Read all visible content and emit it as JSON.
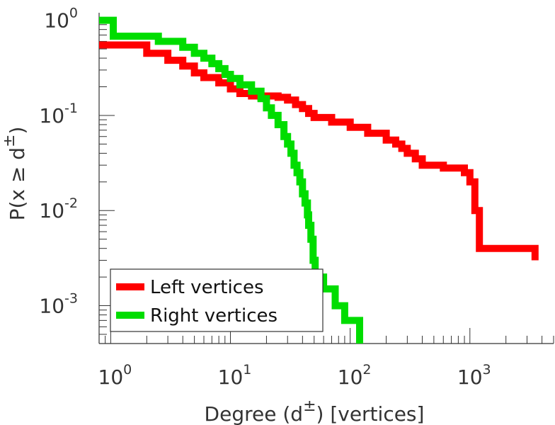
{
  "chart_data": {
    "type": "line",
    "title": "",
    "xlabel": {
      "prefix": "Degree (d",
      "superscript": "±",
      "suffix": ") [vertices]"
    },
    "ylabel": {
      "prefix": "P(x ≥ d",
      "superscript": "±",
      "suffix": ")"
    },
    "x_scale": "log",
    "y_scale": "log",
    "xlim": [
      0.8,
      5000
    ],
    "ylim": [
      0.0004,
      1.2
    ],
    "x_ticks": [
      {
        "value": 1,
        "base": "10",
        "exp": "0"
      },
      {
        "value": 10,
        "base": "10",
        "exp": "1"
      },
      {
        "value": 100,
        "base": "10",
        "exp": "2"
      },
      {
        "value": 1000,
        "base": "10",
        "exp": "3"
      }
    ],
    "y_ticks": [
      {
        "value": 1,
        "base": "10",
        "exp": "0"
      },
      {
        "value": 0.1,
        "base": "10",
        "exp": "-1"
      },
      {
        "value": 0.01,
        "base": "10",
        "exp": "-2"
      },
      {
        "value": 0.001,
        "base": "10",
        "exp": "-3"
      }
    ],
    "grid": false,
    "legend_position": "bottom-left",
    "series": [
      {
        "name": "Left vertices",
        "color": "#ff0000",
        "step": true,
        "points": [
          [
            0.8,
            0.55
          ],
          [
            1,
            0.55
          ],
          [
            2,
            0.45
          ],
          [
            3,
            0.38
          ],
          [
            4,
            0.33
          ],
          [
            5,
            0.28
          ],
          [
            6,
            0.25
          ],
          [
            8,
            0.22
          ],
          [
            10,
            0.19
          ],
          [
            12,
            0.17
          ],
          [
            15,
            0.16
          ],
          [
            18,
            0.155
          ],
          [
            20,
            0.16
          ],
          [
            25,
            0.155
          ],
          [
            30,
            0.145
          ],
          [
            35,
            0.13
          ],
          [
            40,
            0.118
          ],
          [
            45,
            0.105
          ],
          [
            50,
            0.095
          ],
          [
            70,
            0.085
          ],
          [
            100,
            0.075
          ],
          [
            140,
            0.065
          ],
          [
            200,
            0.055
          ],
          [
            240,
            0.05
          ],
          [
            270,
            0.045
          ],
          [
            300,
            0.04
          ],
          [
            350,
            0.035
          ],
          [
            400,
            0.03
          ],
          [
            600,
            0.028
          ],
          [
            900,
            0.025
          ],
          [
            1000,
            0.02
          ],
          [
            1100,
            0.01
          ],
          [
            1200,
            0.004
          ],
          [
            3500,
            0.004
          ],
          [
            3500,
            0.003
          ]
        ]
      },
      {
        "name": "Right vertices",
        "color": "#00dd00",
        "step": true,
        "points": [
          [
            0.8,
            1.0
          ],
          [
            1.05,
            1.0
          ],
          [
            1.05,
            0.68
          ],
          [
            2.5,
            0.6
          ],
          [
            4,
            0.52
          ],
          [
            5,
            0.45
          ],
          [
            6,
            0.4
          ],
          [
            7,
            0.35
          ],
          [
            8,
            0.31
          ],
          [
            9,
            0.27
          ],
          [
            10,
            0.245
          ],
          [
            12,
            0.21
          ],
          [
            15,
            0.18
          ],
          [
            18,
            0.15
          ],
          [
            20,
            0.12
          ],
          [
            22,
            0.1
          ],
          [
            25,
            0.08
          ],
          [
            28,
            0.06
          ],
          [
            30,
            0.05
          ],
          [
            32,
            0.04
          ],
          [
            34,
            0.03
          ],
          [
            36,
            0.025
          ],
          [
            38,
            0.02
          ],
          [
            40,
            0.015
          ],
          [
            42,
            0.012
          ],
          [
            44,
            0.009
          ],
          [
            45,
            0.007
          ],
          [
            47,
            0.005
          ],
          [
            49,
            0.003
          ],
          [
            51,
            0.002
          ],
          [
            60,
            0.0015
          ],
          [
            75,
            0.001
          ],
          [
            90,
            0.0007
          ],
          [
            120,
            0.0005
          ],
          [
            120,
            0.0004
          ]
        ]
      }
    ]
  }
}
